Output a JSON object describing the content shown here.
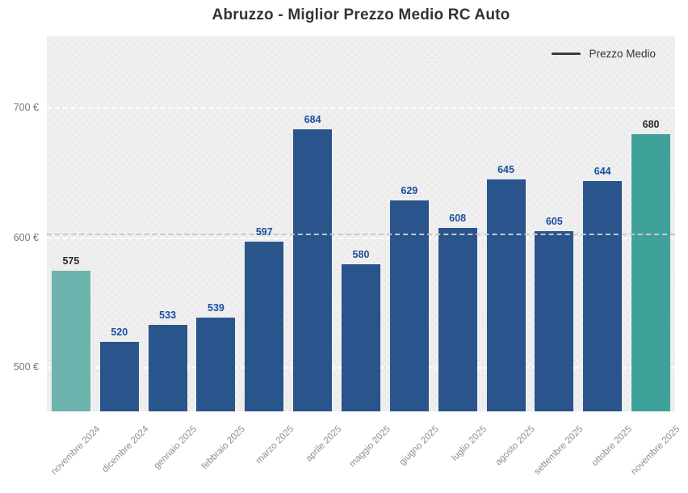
{
  "title": "Abruzzo - Miglior Prezzo Medio RC Auto",
  "legend": {
    "label": "Prezzo Medio",
    "marker": "line",
    "marker_color": "#3a3a3a"
  },
  "chart_data": {
    "type": "bar",
    "title": "Abruzzo - Miglior Prezzo Medio RC Auto",
    "categories": [
      "novembre 2024",
      "dicembre 2024",
      "gennaio 2025",
      "febbraio 2025",
      "marzo 2025",
      "aprile 2025",
      "maggio 2025",
      "giugno 2025",
      "luglio 2025",
      "agosto 2025",
      "settembre 2025",
      "ottobre 2025",
      "novembre 2025"
    ],
    "values": [
      575,
      520,
      533,
      539,
      597,
      684,
      580,
      629,
      608,
      645,
      605,
      644,
      680
    ],
    "series_name": "Prezzo Medio",
    "currency": "€",
    "y_axis": {
      "ticks": [
        {
          "value": 700,
          "label": "700 €"
        },
        {
          "value": 600,
          "label": "600 €"
        },
        {
          "value": 500,
          "label": "500 €"
        }
      ],
      "range": [
        466.5,
        755.3
      ],
      "grid": true,
      "grid_style": "dashed-white"
    },
    "average_line": 603,
    "legend_position": "top-right-inside",
    "highlight_indices": [
      0,
      12
    ],
    "colors": {
      "bar_default": "#2a548c",
      "bar_highlight_first": "#6cb4ad",
      "bar_highlight_last": "#3ea29b",
      "value_label_default": "#1b4f9e",
      "value_label_highlight": "#2a2a2a",
      "grid_line": "#ffffff",
      "average_line": "#c9c9c9",
      "plot_background": "#efefef",
      "y_tick_text": "#777777",
      "x_tick_text": "#8f8f8f",
      "title_text": "#333333"
    }
  }
}
